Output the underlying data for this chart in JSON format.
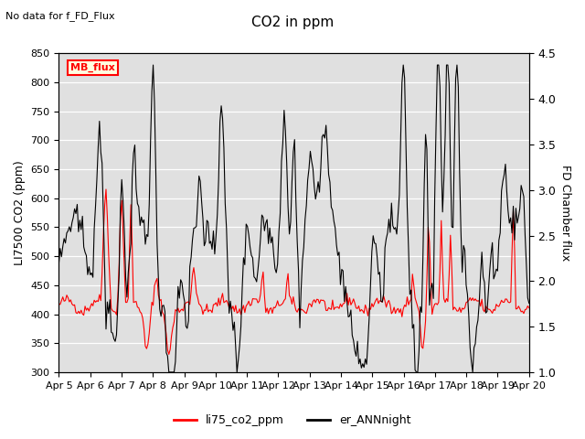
{
  "title": "CO2 in ppm",
  "no_data_text": "No data for f_FD_Flux",
  "ylabel_left": "LI7500 CO2 (ppm)",
  "ylabel_right": "FD Chamber flux",
  "ylim_left": [
    300,
    850
  ],
  "ylim_right": [
    1.0,
    4.5
  ],
  "xtick_labels": [
    "Apr 5",
    "Apr 6",
    "Apr 7",
    "Apr 8",
    "Apr 9",
    "Apr 10",
    "Apr 11",
    "Apr 12",
    "Apr 13",
    "Apr 14",
    "Apr 15",
    "Apr 16",
    "Apr 17",
    "Apr 18",
    "Apr 19",
    "Apr 20"
  ],
  "yticks_left": [
    300,
    350,
    400,
    450,
    500,
    550,
    600,
    650,
    700,
    750,
    800,
    850
  ],
  "yticks_right": [
    1.0,
    1.5,
    2.0,
    2.5,
    3.0,
    3.5,
    4.0,
    4.5
  ],
  "mb_flux_label": "MB_flux",
  "legend_red_label": "li75_co2_ppm",
  "legend_black_label": "er_ANNnight",
  "bg_color": "#e0e0e0",
  "line_red_color": "red",
  "line_black_color": "black"
}
